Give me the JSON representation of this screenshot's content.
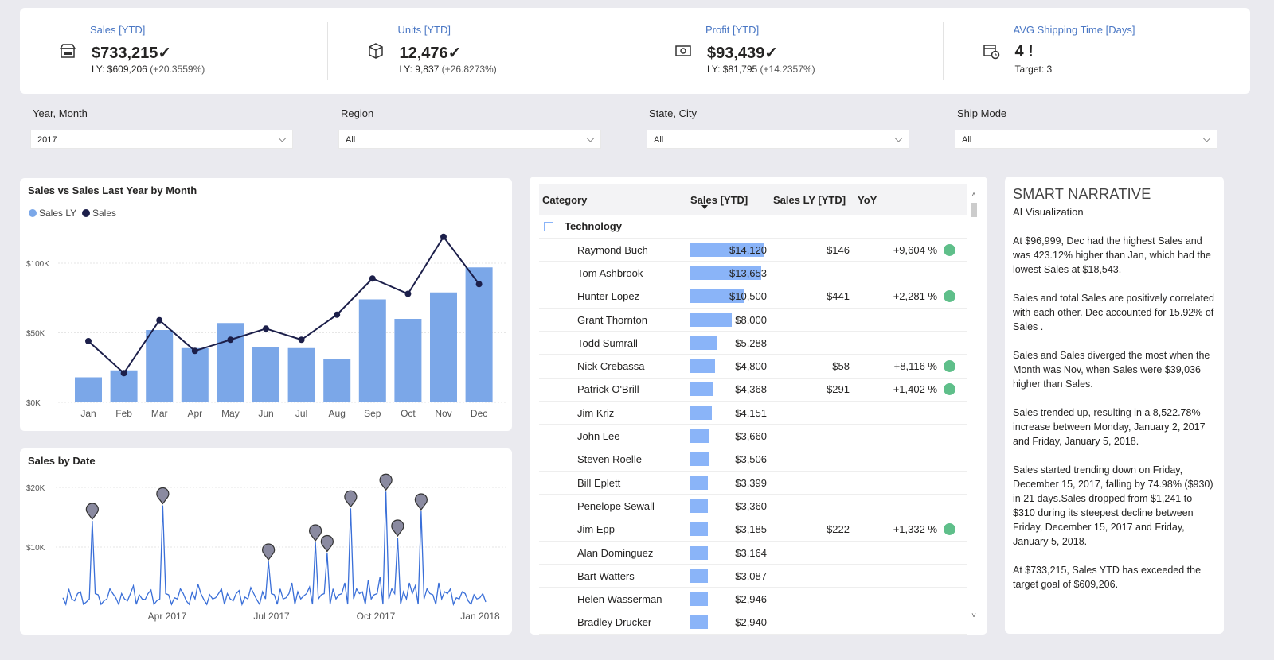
{
  "kpis": [
    {
      "title": "Sales [YTD]",
      "value": "$733,215✓",
      "ly": "LY: $609,206",
      "pct": "(+20.3559%)",
      "icon": "store-icon"
    },
    {
      "title": "Units [YTD]",
      "value": "12,476✓",
      "ly": "LY: 9,837",
      "pct": "(+26.8273%)",
      "icon": "box-icon"
    },
    {
      "title": "Profit [YTD]",
      "value": "$93,439✓",
      "ly": "LY: $81,795",
      "pct": "(+14.2357%)",
      "icon": "money-icon"
    },
    {
      "title": "AVG Shipping Time [Days]",
      "value": "4 !",
      "ly": "Target: 3",
      "pct": "",
      "icon": "calendar-clock-icon"
    }
  ],
  "filters": [
    {
      "label": "Year, Month",
      "value": "2017"
    },
    {
      "label": "Region",
      "value": "All"
    },
    {
      "label": "State, City",
      "value": "All"
    },
    {
      "label": "Ship Mode",
      "value": "All"
    }
  ],
  "chart_data": [
    {
      "type": "bar",
      "title": "Sales vs Sales Last Year by Month",
      "categories": [
        "Jan",
        "Feb",
        "Mar",
        "Apr",
        "May",
        "Jun",
        "Jul",
        "Aug",
        "Sep",
        "Oct",
        "Nov",
        "Dec"
      ],
      "series": [
        {
          "name": "Sales LY",
          "type": "bar",
          "color": "#7ba7e8",
          "values": [
            18,
            23,
            52,
            39,
            57,
            40,
            39,
            31,
            74,
            60,
            79,
            97
          ]
        },
        {
          "name": "Sales",
          "type": "line",
          "color": "#1c1f4a",
          "values": [
            44,
            21,
            59,
            37,
            45,
            53,
            45,
            63,
            89,
            78,
            119,
            85
          ]
        }
      ],
      "unit": "K",
      "yticks": [
        "$0K",
        "$50K",
        "$100K"
      ],
      "ylim": [
        0,
        120
      ],
      "legend": "top-left"
    },
    {
      "type": "line",
      "title": "Sales by Date",
      "color": "#3a6fd8",
      "xticks": [
        "Apr 2017",
        "Jul 2017",
        "Oct 2017",
        "Jan 2018"
      ],
      "yticks": [
        "$10K",
        "$20K"
      ],
      "ylim": [
        0,
        22
      ],
      "series_k": [
        1.5,
        3,
        1,
        2.5,
        0.8,
        14.4,
        2,
        1,
        3,
        1.5,
        2.2,
        1,
        3.5,
        2,
        1.2,
        2.8,
        1,
        17,
        2,
        1.5,
        3,
        1,
        2.4,
        3.8,
        1.2,
        2,
        1.5,
        3,
        2.2,
        1,
        2.7,
        1.6,
        3.2,
        1.2,
        2.5,
        7.6,
        2,
        3,
        1.5,
        4,
        2.5,
        1.8,
        3.3,
        10.8,
        2,
        9,
        3,
        2,
        4,
        16.5,
        3,
        2.5,
        4.5,
        2,
        5,
        19.3,
        3,
        11.6,
        2.5,
        4,
        3.5,
        16,
        3,
        2,
        4,
        2.5,
        3,
        1.5,
        2.5,
        1,
        2,
        1.5,
        0.8
      ],
      "anomalies_k": [
        [
          5,
          14.4
        ],
        [
          17,
          17
        ],
        [
          35,
          7.6
        ],
        [
          43,
          10.8
        ],
        [
          45,
          9
        ],
        [
          49,
          16.5
        ],
        [
          55,
          19.3
        ],
        [
          57,
          11.6
        ],
        [
          61,
          16
        ]
      ]
    }
  ],
  "table": {
    "headers": [
      "Category",
      "Sales [YTD]",
      "Sales LY [YTD]",
      "YoY"
    ],
    "group": "Technology",
    "max": 14120,
    "rows": [
      [
        "Raymond Buch",
        "$14,120",
        14120,
        "$146",
        "+9,604 %",
        true
      ],
      [
        "Tom Ashbrook",
        "$13,653",
        13653,
        "",
        "",
        false
      ],
      [
        "Hunter Lopez",
        "$10,500",
        10500,
        "$441",
        "+2,281 %",
        true
      ],
      [
        "Grant Thornton",
        "$8,000",
        8000,
        "",
        "",
        false
      ],
      [
        "Todd Sumrall",
        "$5,288",
        5288,
        "",
        "",
        false
      ],
      [
        "Nick Crebassa",
        "$4,800",
        4800,
        "$58",
        "+8,116 %",
        true
      ],
      [
        "Patrick O'Brill",
        "$4,368",
        4368,
        "$291",
        "+1,402 %",
        true
      ],
      [
        "Jim Kriz",
        "$4,151",
        4151,
        "",
        "",
        false
      ],
      [
        "John Lee",
        "$3,660",
        3660,
        "",
        "",
        false
      ],
      [
        "Steven Roelle",
        "$3,506",
        3506,
        "",
        "",
        false
      ],
      [
        "Bill Eplett",
        "$3,399",
        3399,
        "",
        "",
        false
      ],
      [
        "Penelope Sewall",
        "$3,360",
        3360,
        "",
        "",
        false
      ],
      [
        "Jim Epp",
        "$3,185",
        3185,
        "$222",
        "+1,332 %",
        true
      ],
      [
        "Alan Dominguez",
        "$3,164",
        3164,
        "",
        "",
        false
      ],
      [
        "Bart Watters",
        "$3,087",
        3087,
        "",
        "",
        false
      ],
      [
        "Helen Wasserman",
        "$2,946",
        2946,
        "",
        "",
        false
      ],
      [
        "Bradley Drucker",
        "$2,940",
        2940,
        "",
        "",
        false
      ]
    ]
  },
  "narrative": {
    "title": "SMART NARRATIVE",
    "subtitle": "AI Visualization",
    "paragraphs": [
      "At $96,999, Dec had the highest Sales  and was 423.12% higher than Jan, which had the lowest Sales  at $18,543.",
      "Sales  and total Sales are positively correlated with each other. Dec accounted for 15.92% of Sales .",
      "Sales and Sales diverged the most when the Month was Nov, when Sales were $39,036 higher than Sales.",
      "Sales trended up, resulting in a 8,522.78% increase between Monday, January 2, 2017 and Friday, January 5, 2018.",
      "Sales started trending down on Friday, December 15, 2017, falling by 74.98% ($930) in 21 days.Sales dropped from $1,241 to $310 during its steepest decline between Friday, December 15, 2017 and Friday, January 5, 2018.",
      "At $733,215, Sales YTD has exceeded the target goal of $609,206."
    ]
  }
}
